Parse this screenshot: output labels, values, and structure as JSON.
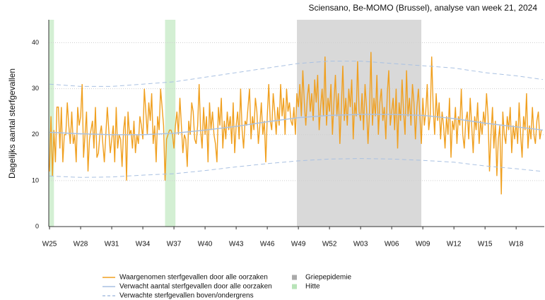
{
  "chart_data": {
    "type": "line",
    "title": "Sciensano, Be-MOMO (Brussel), analyse van week 21, 2024",
    "y_label": "Dagelijks aantal sterfgevallen",
    "xlim": [
      -0.5,
      334
    ],
    "ylim": [
      0,
      45
    ],
    "yticks": [
      0,
      10,
      20,
      30,
      40
    ],
    "xticks": [
      {
        "value": 0,
        "label": "W25"
      },
      {
        "value": 21,
        "label": "W28"
      },
      {
        "value": 42,
        "label": "W31"
      },
      {
        "value": 63,
        "label": "W34"
      },
      {
        "value": 84,
        "label": "W37"
      },
      {
        "value": 105,
        "label": "W40"
      },
      {
        "value": 126,
        "label": "W43"
      },
      {
        "value": 147,
        "label": "W46"
      },
      {
        "value": 168,
        "label": "W49"
      },
      {
        "value": 189,
        "label": "W52"
      },
      {
        "value": 210,
        "label": "W03"
      },
      {
        "value": 231,
        "label": "W06"
      },
      {
        "value": 252,
        "label": "W09"
      },
      {
        "value": 273,
        "label": "W12"
      },
      {
        "value": 294,
        "label": "W15"
      },
      {
        "value": 315,
        "label": "W18"
      }
    ],
    "grid": true,
    "bands": [
      {
        "name": "Griepepidemie",
        "color": "#d9d9d9",
        "ranges": [
          [
            167,
            251
          ]
        ]
      },
      {
        "name": "Hitte",
        "color": "#d3efd3",
        "ranges": [
          [
            -0.5,
            3
          ],
          [
            78,
            85
          ]
        ]
      }
    ],
    "series": [
      {
        "name": "Waargenomen sterfgevallen door alle oorzaken",
        "color": "#f0a020",
        "dash": false,
        "x": [
          0,
          1,
          2,
          3,
          4,
          5,
          6,
          7,
          8,
          9,
          10,
          11,
          12,
          13,
          14,
          15,
          16,
          17,
          18,
          19,
          20,
          21,
          22,
          23,
          24,
          25,
          26,
          27,
          28,
          29,
          30,
          31,
          32,
          33,
          34,
          35,
          36,
          37,
          38,
          39,
          40,
          41,
          42,
          43,
          44,
          45,
          46,
          47,
          48,
          49,
          50,
          51,
          52,
          53,
          54,
          55,
          56,
          57,
          58,
          59,
          60,
          61,
          62,
          63,
          64,
          65,
          66,
          67,
          68,
          69,
          70,
          71,
          72,
          73,
          74,
          75,
          76,
          77,
          78,
          79,
          80,
          81,
          82,
          83,
          84,
          85,
          86,
          87,
          88,
          89,
          90,
          91,
          92,
          93,
          94,
          95,
          96,
          97,
          98,
          99,
          100,
          101,
          102,
          103,
          104,
          105,
          106,
          107,
          108,
          109,
          110,
          111,
          112,
          113,
          114,
          115,
          116,
          117,
          118,
          119,
          120,
          121,
          122,
          123,
          124,
          125,
          126,
          127,
          128,
          129,
          130,
          131,
          132,
          133,
          134,
          135,
          136,
          137,
          138,
          139,
          140,
          141,
          142,
          143,
          144,
          145,
          146,
          147,
          148,
          149,
          150,
          151,
          152,
          153,
          154,
          155,
          156,
          157,
          158,
          159,
          160,
          161,
          162,
          163,
          164,
          165,
          166,
          167,
          168,
          169,
          170,
          171,
          172,
          173,
          174,
          175,
          176,
          177,
          178,
          179,
          180,
          181,
          182,
          183,
          184,
          185,
          186,
          187,
          188,
          189,
          190,
          191,
          192,
          193,
          194,
          195,
          196,
          197,
          198,
          199,
          200,
          201,
          202,
          203,
          204,
          205,
          206,
          207,
          208,
          209,
          210,
          211,
          212,
          213,
          214,
          215,
          216,
          217,
          218,
          219,
          220,
          221,
          222,
          223,
          224,
          225,
          226,
          227,
          228,
          229,
          230,
          231,
          232,
          233,
          234,
          235,
          236,
          237,
          238,
          239,
          240,
          241,
          242,
          243,
          244,
          245,
          246,
          247,
          248,
          249,
          250,
          251,
          252,
          253,
          254,
          255,
          256,
          257,
          258,
          259,
          260,
          261,
          262,
          263,
          264,
          265,
          266,
          267,
          268,
          269,
          270,
          271,
          272,
          273,
          274,
          275,
          276,
          277,
          278,
          279,
          280,
          281,
          282,
          283,
          284,
          285,
          286,
          287,
          288,
          289,
          290,
          291,
          292,
          293,
          294,
          295,
          296,
          297,
          298,
          299,
          300,
          301,
          302,
          303,
          304,
          305,
          306,
          307,
          308,
          309,
          310,
          311,
          312,
          313,
          314,
          315,
          316,
          317,
          318,
          319,
          320,
          321,
          322,
          323,
          324,
          325,
          326,
          327,
          328,
          329,
          330,
          331,
          332
        ],
        "values": [
          12,
          24,
          11,
          21,
          14,
          26,
          26,
          17,
          26,
          14,
          20,
          20,
          27,
          22,
          18,
          25,
          18,
          20,
          14,
          26,
          22,
          24,
          31,
          15,
          20,
          25,
          12,
          19,
          21,
          23,
          17,
          26,
          15,
          16,
          20,
          22,
          18,
          14,
          20,
          26,
          21,
          16,
          19,
          22,
          14,
          26,
          17,
          20,
          19,
          13,
          21,
          24,
          10,
          25,
          20,
          21,
          17,
          23,
          16,
          20,
          18,
          24,
          22,
          19,
          30,
          25,
          20,
          27,
          23,
          29,
          18,
          22,
          14,
          24,
          21,
          30,
          26,
          22,
          10,
          19,
          20,
          21,
          21,
          20,
          17,
          22,
          25,
          20,
          28,
          22,
          16,
          20,
          19,
          13,
          23,
          20,
          27,
          25,
          19,
          18,
          22,
          31,
          21,
          17,
          26,
          20,
          24,
          14,
          27,
          21,
          25,
          20,
          18,
          14,
          26,
          22,
          28,
          17,
          23,
          19,
          25,
          21,
          24,
          18,
          27,
          16,
          22,
          25,
          19,
          30,
          21,
          17,
          23,
          22,
          26,
          30,
          19,
          24,
          21,
          28,
          25,
          18,
          22,
          27,
          20,
          23,
          14,
          24,
          31,
          23,
          21,
          29,
          25,
          20,
          26,
          22,
          31,
          24,
          28,
          20,
          30,
          25,
          27,
          23,
          22,
          26,
          20,
          29,
          26,
          31,
          24,
          34,
          27,
          22,
          28,
          31,
          25,
          29,
          23,
          32,
          27,
          33,
          21,
          26,
          30,
          24,
          37,
          22,
          28,
          25,
          31,
          20,
          27,
          33,
          24,
          29,
          18,
          26,
          35,
          23,
          28,
          22,
          30,
          26,
          32,
          19,
          27,
          24,
          36,
          25,
          23,
          29,
          21,
          31,
          26,
          18,
          25,
          38,
          22,
          28,
          24,
          33,
          20,
          27,
          30,
          23,
          26,
          19,
          29,
          34,
          22,
          25,
          28,
          21,
          30,
          17,
          27,
          23,
          32,
          25,
          20,
          34,
          24,
          28,
          22,
          31,
          27,
          19,
          26,
          30,
          24,
          18,
          28,
          22,
          25,
          31,
          21,
          24,
          37,
          26,
          20,
          29,
          23,
          27,
          19,
          25,
          22,
          17,
          24,
          20,
          28,
          15,
          23,
          21,
          26,
          18,
          24,
          22,
          30,
          20,
          17,
          23,
          25,
          19,
          28,
          22,
          16,
          24,
          21,
          27,
          18,
          23,
          20,
          25,
          22,
          29,
          24,
          12,
          20,
          26,
          17,
          23,
          11,
          19,
          22,
          7,
          25,
          20,
          18,
          24,
          21,
          26,
          16,
          22,
          19,
          23,
          18,
          27,
          20,
          15,
          24,
          21,
          29,
          17,
          22,
          19,
          26,
          20,
          18,
          23,
          25,
          19,
          21
        ]
      },
      {
        "name": "Verwacht aantal sterfgevallen door alle oorzaken",
        "color": "#a9c1e2",
        "dash": false,
        "x": [
          0,
          21,
          42,
          63,
          84,
          105,
          126,
          147,
          168,
          189,
          210,
          231,
          252,
          273,
          294,
          315,
          333
        ],
        "values": [
          20.5,
          20.2,
          20,
          20,
          20.3,
          21,
          21.8,
          22.8,
          23.7,
          24.2,
          24.4,
          24.4,
          24.2,
          23.5,
          22.5,
          21.7,
          21
        ]
      },
      {
        "name": "Verwachte sterfgevallen boven/ondergrens",
        "color": "#a9c1e2",
        "dash": true,
        "x": [
          0,
          21,
          42,
          63,
          84,
          105,
          126,
          147,
          168,
          189,
          210,
          231,
          252,
          273,
          294,
          315,
          333
        ],
        "values": [
          31,
          30.5,
          30.5,
          31,
          31.5,
          32.5,
          33.5,
          34.5,
          35.5,
          36,
          36,
          35.5,
          35,
          34.5,
          33.5,
          32.8,
          32
        ],
        "lower": [
          11,
          10.7,
          10.8,
          11.2,
          11.5,
          12.2,
          13,
          13.7,
          14.3,
          14.7,
          14.8,
          14.7,
          14.4,
          14,
          13.2,
          12.6,
          12
        ]
      }
    ]
  }
}
